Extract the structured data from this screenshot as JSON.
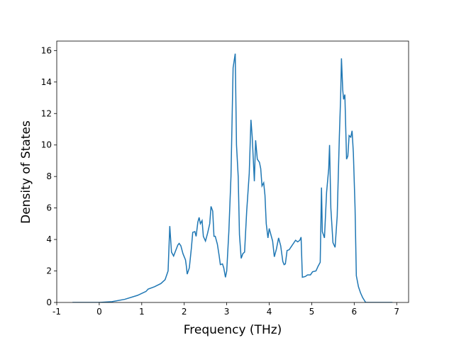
{
  "chart_data": {
    "type": "line",
    "xlabel": "Frequency (THz)",
    "ylabel": "Density of States",
    "xlim": [
      -1.0,
      7.28
    ],
    "ylim": [
      0,
      16.6
    ],
    "xticks": [
      -1,
      0,
      1,
      2,
      3,
      4,
      5,
      6,
      7
    ],
    "yticks": [
      0,
      2,
      4,
      6,
      8,
      10,
      12,
      14,
      16
    ],
    "grid": false,
    "x": [
      -0.63,
      0,
      0.3,
      0.6,
      0.9,
      1.1,
      1.15,
      1.3,
      1.45,
      1.55,
      1.62,
      1.66,
      1.7,
      1.75,
      1.8,
      1.85,
      1.88,
      1.92,
      1.97,
      2.03,
      2.05,
      2.07,
      2.12,
      2.17,
      2.2,
      2.25,
      2.28,
      2.32,
      2.35,
      2.38,
      2.42,
      2.45,
      2.5,
      2.55,
      2.6,
      2.63,
      2.67,
      2.7,
      2.73,
      2.78,
      2.82,
      2.85,
      2.9,
      2.93,
      2.97,
      3.0,
      3.05,
      3.1,
      3.15,
      3.2,
      3.23,
      3.27,
      3.3,
      3.34,
      3.38,
      3.42,
      3.47,
      3.5,
      3.53,
      3.57,
      3.6,
      3.65,
      3.68,
      3.72,
      3.77,
      3.8,
      3.83,
      3.87,
      3.9,
      3.93,
      3.97,
      4.0,
      4.05,
      4.08,
      4.12,
      4.17,
      4.22,
      4.27,
      4.32,
      4.35,
      4.38,
      4.42,
      4.47,
      4.52,
      4.57,
      4.62,
      4.67,
      4.72,
      4.75,
      4.78,
      4.85,
      4.9,
      4.97,
      5.02,
      5.1,
      5.15,
      5.2,
      5.23,
      5.25,
      5.3,
      5.35,
      5.4,
      5.42,
      5.45,
      5.5,
      5.55,
      5.6,
      5.65,
      5.68,
      5.7,
      5.73,
      5.75,
      5.78,
      5.82,
      5.85,
      5.88,
      5.92,
      5.95,
      5.98,
      6.02,
      6.05,
      6.1,
      6.15,
      6.2,
      6.27,
      6.9
    ],
    "series": [
      {
        "name": "DOS",
        "color": "#1f77b4",
        "values": [
          0,
          0,
          0.05,
          0.2,
          0.45,
          0.7,
          0.85,
          1.0,
          1.2,
          1.45,
          2.0,
          4.85,
          3.2,
          2.95,
          3.3,
          3.65,
          3.75,
          3.6,
          3.1,
          2.7,
          2.3,
          1.8,
          2.2,
          3.5,
          4.45,
          4.5,
          4.2,
          5.1,
          5.4,
          5.0,
          5.2,
          4.2,
          3.9,
          4.4,
          5.0,
          6.1,
          5.8,
          4.2,
          4.2,
          3.7,
          3.0,
          2.4,
          2.45,
          2.2,
          1.6,
          2.0,
          4.5,
          8.0,
          14.9,
          15.8,
          10.0,
          8.0,
          4.3,
          2.8,
          3.1,
          3.2,
          5.8,
          7.0,
          8.2,
          11.6,
          10.5,
          7.7,
          10.3,
          9.1,
          8.9,
          8.5,
          7.4,
          7.6,
          6.8,
          5.0,
          4.1,
          4.7,
          4.2,
          3.9,
          2.9,
          3.4,
          4.1,
          3.6,
          2.6,
          2.4,
          2.45,
          3.3,
          3.35,
          3.55,
          3.75,
          3.95,
          3.85,
          3.95,
          4.15,
          1.6,
          1.65,
          1.75,
          1.75,
          1.95,
          2.0,
          2.3,
          2.55,
          7.3,
          4.5,
          4.1,
          7.0,
          8.5,
          10.0,
          6.0,
          3.8,
          3.5,
          5.5,
          10.5,
          13.0,
          15.5,
          13.5,
          12.9,
          13.2,
          9.1,
          9.3,
          10.6,
          10.5,
          10.9,
          9.5,
          6.0,
          1.7,
          1.0,
          0.6,
          0.3,
          0,
          0
        ]
      }
    ]
  }
}
